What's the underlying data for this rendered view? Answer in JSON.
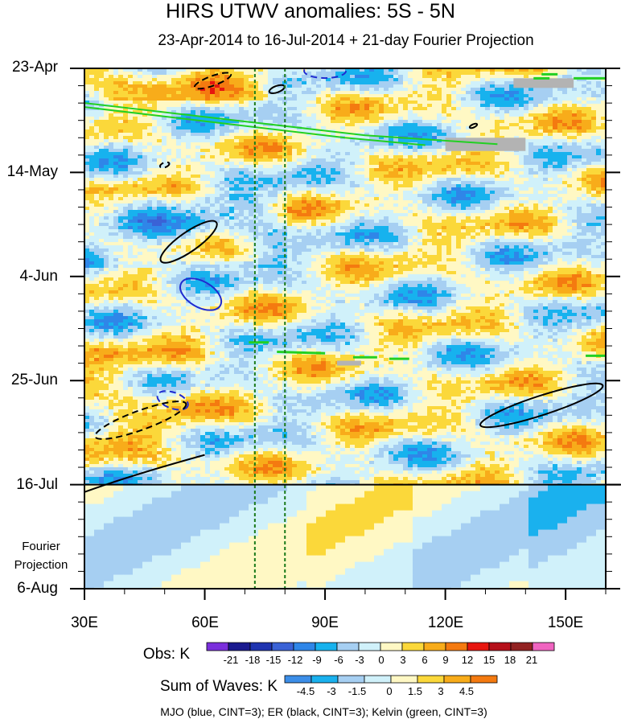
{
  "title": "HIRS UTWV anomalies: 5S - 5N",
  "subtitle": "23-Apr-2014 to 16-Jul-2014 + 21-day Fourier Projection",
  "caption": "MJO (blue, CINT=3); ER (black, CINT=3); Kelvin (green, CINT=3)",
  "chart_data": {
    "type": "heatmap",
    "title": "HIRS UTWV anomalies: 5S - 5N",
    "subtitle": "23-Apr-2014 to 16-Jul-2014 + 21-day Fourier Projection",
    "x_axis": {
      "range": [
        30,
        160
      ],
      "ticks": [
        30,
        60,
        90,
        120,
        150
      ],
      "tick_labels": [
        "30E",
        "60E",
        "90E",
        "120E",
        "150E"
      ]
    },
    "y_axis": {
      "range_dates": [
        "23-Apr",
        "6-Aug"
      ],
      "ticks": [
        "23-Apr",
        "14-May",
        "4-Jun",
        "25-Jun",
        "16-Jul",
        "6-Aug"
      ]
    },
    "observation_end": "16-Jul",
    "projection_label": [
      "Fourier",
      "Projection"
    ],
    "reference_longitudes": [
      72.5,
      80
    ],
    "obs_colorbar": {
      "label": "Obs: K",
      "levels": [
        "-21",
        "-18",
        "-15",
        "-12",
        "-9",
        "-6",
        "-3",
        "0",
        "3",
        "6",
        "9",
        "12",
        "15",
        "18",
        "21"
      ],
      "colors": [
        "#7a2fdc",
        "#1a1a8f",
        "#1f34b0",
        "#3a62d6",
        "#2f86e8",
        "#17b2ee",
        "#a6cff2",
        "#d0f1fa",
        "#fff8c4",
        "#fbd83a",
        "#f8ac1a",
        "#f47a10",
        "#e7160f",
        "#b5101a",
        "#922222",
        "#f064c0"
      ]
    },
    "waves_colorbar": {
      "label": "Sum of Waves: K",
      "levels": [
        "-4.5",
        "-3",
        "-1.5",
        "0",
        "1.5",
        "3",
        "4.5"
      ],
      "colors": [
        "#3c8ee8",
        "#1ab1ee",
        "#a6cff2",
        "#d0f1fa",
        "#fff8c4",
        "#fbd83a",
        "#f8ac1a",
        "#f47a10"
      ]
    },
    "contours": [
      {
        "name": "MJO",
        "color": "#1f2bd0",
        "cint": 3
      },
      {
        "name": "ER",
        "color": "#000000",
        "cint": 3
      },
      {
        "name": "Kelvin",
        "color": "#22d022",
        "cint": 3
      }
    ],
    "missing_data_color": "#b3b3b3"
  }
}
